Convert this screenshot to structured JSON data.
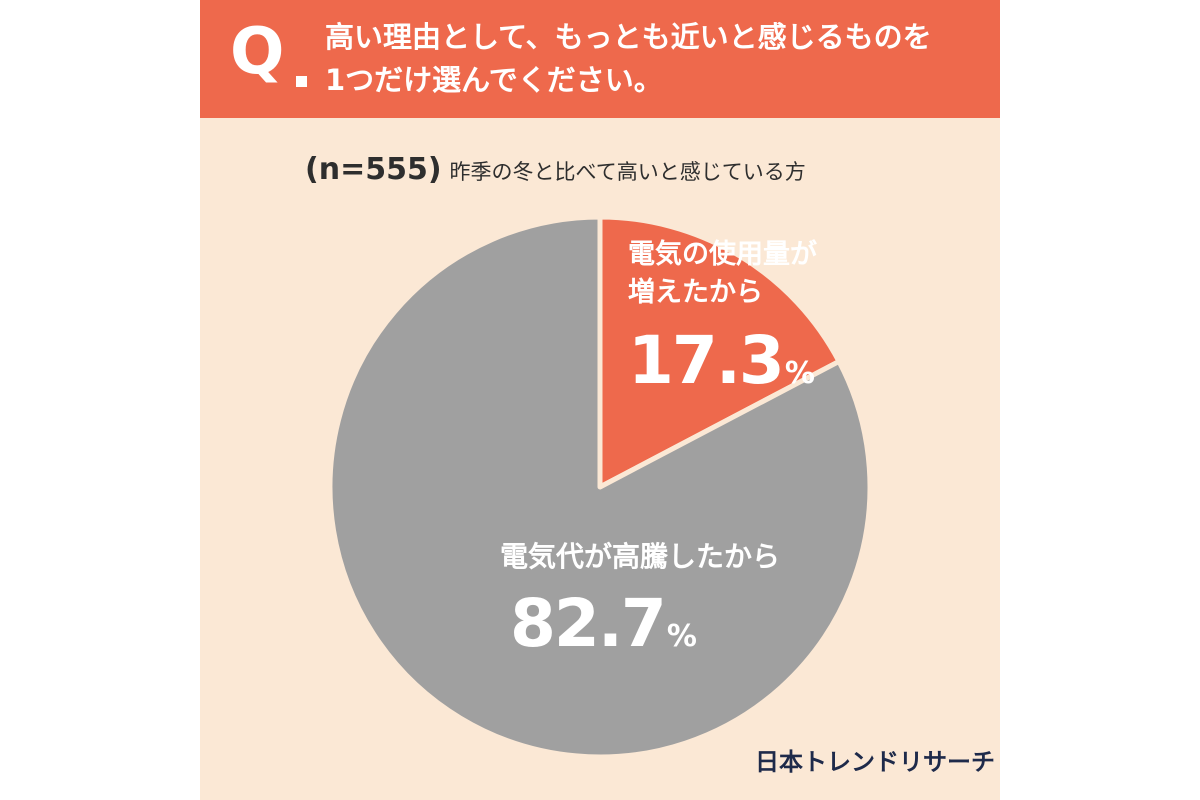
{
  "question": {
    "badge": "Q",
    "line1": "高い理由として、もっとも近いと感じるものを",
    "line2": "1つだけ選んでください。"
  },
  "subtitle": {
    "n_label": "(n=555)",
    "group": "昨季の冬と比べて高いと感じている方"
  },
  "brand": "日本トレンドリサーチ",
  "colors": {
    "accent": "#ee694c",
    "gray_slice": "#a0a0a0",
    "background": "#fbe8d5",
    "separator": "#fbe8d5"
  },
  "chart_data": {
    "type": "pie",
    "start": "12 o'clock, clockwise",
    "slices": [
      {
        "label": "電気代が高騰したから",
        "value": 82.7,
        "value_text": "82.7",
        "unit": "%",
        "color": "#a0a0a0"
      },
      {
        "label_lines": [
          "電気の使用量が",
          "増えたから"
        ],
        "value": 17.3,
        "value_text": "17.3",
        "unit": "%",
        "color": "#ee694c"
      }
    ]
  }
}
